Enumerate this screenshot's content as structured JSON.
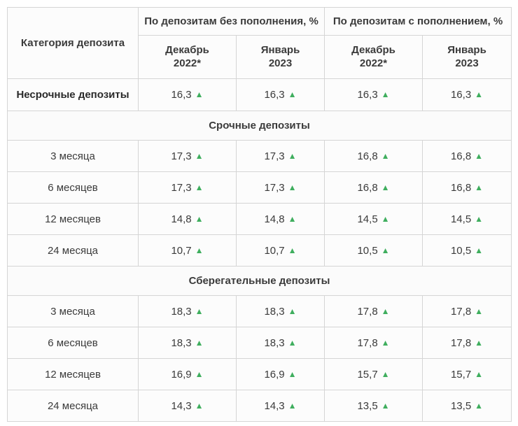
{
  "chart_data": {
    "type": "table",
    "title": "",
    "column_groups": [
      "По депозитам без пополнения, %",
      "По депозитам с пополнением, %"
    ],
    "columns": [
      "Категория депозита",
      "Декабрь 2022*",
      "Январь 2023",
      "Декабрь 2022*",
      "Январь 2023"
    ],
    "rows": [
      {
        "section": "",
        "label": "Несрочные депозиты",
        "values": [
          16.3,
          16.3,
          16.3,
          16.3
        ],
        "trend": [
          "up",
          "up",
          "up",
          "up"
        ]
      },
      {
        "section": "Срочные депозиты",
        "label": "3 месяца",
        "values": [
          17.3,
          17.3,
          16.8,
          16.8
        ],
        "trend": [
          "up",
          "up",
          "up",
          "up"
        ]
      },
      {
        "section": "Срочные депозиты",
        "label": "6 месяцев",
        "values": [
          17.3,
          17.3,
          16.8,
          16.8
        ],
        "trend": [
          "up",
          "up",
          "up",
          "up"
        ]
      },
      {
        "section": "Срочные депозиты",
        "label": "12 месяцев",
        "values": [
          14.8,
          14.8,
          14.5,
          14.5
        ],
        "trend": [
          "up",
          "up",
          "up",
          "up"
        ]
      },
      {
        "section": "Срочные депозиты",
        "label": "24 месяца",
        "values": [
          10.7,
          10.7,
          10.5,
          10.5
        ],
        "trend": [
          "up",
          "up",
          "up",
          "up"
        ]
      },
      {
        "section": "Сберегательные депозиты",
        "label": "3 месяца",
        "values": [
          18.3,
          18.3,
          17.8,
          17.8
        ],
        "trend": [
          "up",
          "up",
          "up",
          "up"
        ]
      },
      {
        "section": "Сберегательные депозиты",
        "label": "6 месяцев",
        "values": [
          18.3,
          18.3,
          17.8,
          17.8
        ],
        "trend": [
          "up",
          "up",
          "up",
          "up"
        ]
      },
      {
        "section": "Сберегательные депозиты",
        "label": "12 месяцев",
        "values": [
          16.9,
          16.9,
          15.7,
          15.7
        ],
        "trend": [
          "up",
          "up",
          "up",
          "up"
        ]
      },
      {
        "section": "Сберегательные депозиты",
        "label": "24 месяца",
        "values": [
          14.3,
          14.3,
          13.5,
          13.5
        ],
        "trend": [
          "up",
          "up",
          "up",
          "up"
        ]
      }
    ]
  },
  "table": {
    "corner_header": "Категория депозита",
    "group_headers": [
      "По депозитам без пополнения, %",
      "По депозитам с пополнением, %"
    ],
    "sub_headers": [
      "Декабрь\n2022*",
      "Январь\n2023",
      "Декабрь\n2022*",
      "Январь\n2023"
    ],
    "trend_icon": "▲",
    "colors": {
      "trend_up": "#3fae5e",
      "border": "#d5d5d5",
      "header_text": "#212121",
      "body_text": "#3b3b3b",
      "cell_background": "#fcfcfc"
    },
    "sections": [
      {
        "title": "",
        "rows": [
          {
            "label": "Несрочные депозиты",
            "values": [
              "16,3",
              "16,3",
              "16,3",
              "16,3"
            ]
          }
        ]
      },
      {
        "title": "Срочные депозиты",
        "rows": [
          {
            "label": "3 месяца",
            "values": [
              "17,3",
              "17,3",
              "16,8",
              "16,8"
            ]
          },
          {
            "label": "6 месяцев",
            "values": [
              "17,3",
              "17,3",
              "16,8",
              "16,8"
            ]
          },
          {
            "label": "12 месяцев",
            "values": [
              "14,8",
              "14,8",
              "14,5",
              "14,5"
            ]
          },
          {
            "label": "24 месяца",
            "values": [
              "10,7",
              "10,7",
              "10,5",
              "10,5"
            ]
          }
        ]
      },
      {
        "title": "Сберегательные депозиты",
        "rows": [
          {
            "label": "3 месяца",
            "values": [
              "18,3",
              "18,3",
              "17,8",
              "17,8"
            ]
          },
          {
            "label": "6 месяцев",
            "values": [
              "18,3",
              "18,3",
              "17,8",
              "17,8"
            ]
          },
          {
            "label": "12 месяцев",
            "values": [
              "16,9",
              "16,9",
              "15,7",
              "15,7"
            ]
          },
          {
            "label": "24 месяца",
            "values": [
              "14,3",
              "14,3",
              "13,5",
              "13,5"
            ]
          }
        ]
      }
    ]
  }
}
